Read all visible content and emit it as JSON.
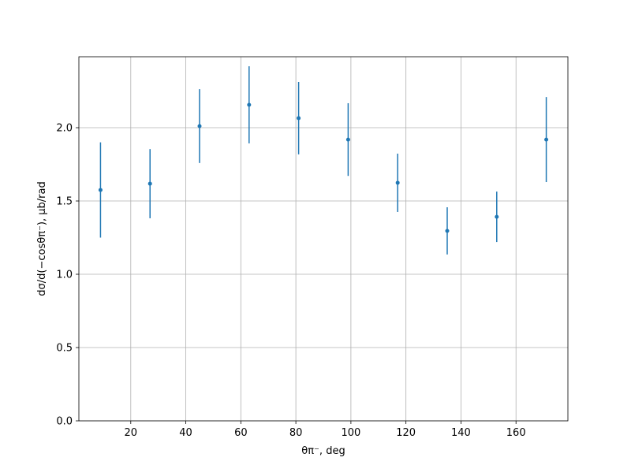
{
  "chart_data": {
    "type": "errorbar",
    "x_label": "θπ⁻, deg",
    "y_label": "dσ/d(−cosθπ⁻), μb/rad",
    "x": [
      9,
      27,
      45,
      63,
      81,
      99,
      117,
      135,
      153,
      171
    ],
    "values": [
      1.575,
      1.618,
      2.011,
      2.156,
      2.065,
      1.919,
      1.624,
      1.296,
      1.392,
      1.919
    ],
    "errors": [
      0.325,
      0.236,
      0.252,
      0.263,
      0.247,
      0.248,
      0.199,
      0.161,
      0.172,
      0.29
    ],
    "color": "#1f77b4",
    "xlim": [
      1.14,
      178.86
    ],
    "ylim": [
      0,
      2.484
    ],
    "xticks": [
      20,
      40,
      60,
      80,
      100,
      120,
      140,
      160
    ],
    "yticks": [
      {
        "value": 0,
        "label": "0.0"
      },
      {
        "value": 0.5,
        "label": "0.5"
      },
      {
        "value": 1,
        "label": "1.0"
      },
      {
        "value": 1.5,
        "label": "1.5"
      },
      {
        "value": 2,
        "label": "2.0"
      }
    ],
    "grid": true
  }
}
